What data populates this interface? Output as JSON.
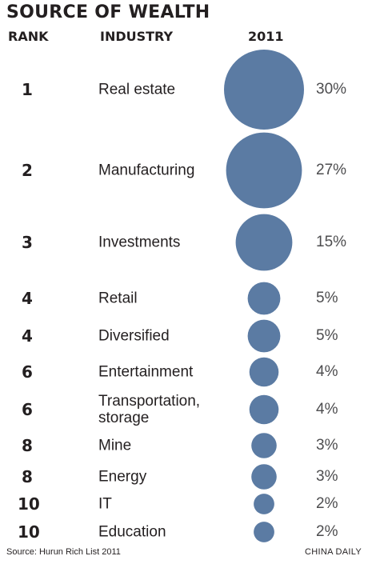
{
  "title": "SOURCE OF WEALTH",
  "headers": {
    "rank": "RANK",
    "industry": "INDUSTRY",
    "year": "2011"
  },
  "chart_data": {
    "type": "bubble",
    "title": "SOURCE OF WEALTH",
    "year": "2011",
    "unit": "%",
    "rows": [
      {
        "rank": "1",
        "industry": "Real estate",
        "value": 30,
        "label": "30%"
      },
      {
        "rank": "2",
        "industry": "Manufacturing",
        "value": 27,
        "label": "27%"
      },
      {
        "rank": "3",
        "industry": "Investments",
        "value": 15,
        "label": "15%"
      },
      {
        "rank": "4",
        "industry": "Retail",
        "value": 5,
        "label": "5%"
      },
      {
        "rank": "4",
        "industry": "Diversified",
        "value": 5,
        "label": "5%"
      },
      {
        "rank": "6",
        "industry": "Entertainment",
        "value": 4,
        "label": "4%"
      },
      {
        "rank": "6",
        "industry": "Transportation,\nstorage",
        "value": 4,
        "label": "4%"
      },
      {
        "rank": "8",
        "industry": "Mine",
        "value": 3,
        "label": "3%"
      },
      {
        "rank": "8",
        "industry": "Energy",
        "value": 3,
        "label": "3%"
      },
      {
        "rank": "10",
        "industry": "IT",
        "value": 2,
        "label": "2%"
      },
      {
        "rank": "10",
        "industry": "Education",
        "value": 2,
        "label": "2%"
      }
    ],
    "bubble_color": "#5b7ba3"
  },
  "footer": {
    "source": "Source: Hurun Rich List 2011",
    "credit": "CHINA DAILY"
  }
}
